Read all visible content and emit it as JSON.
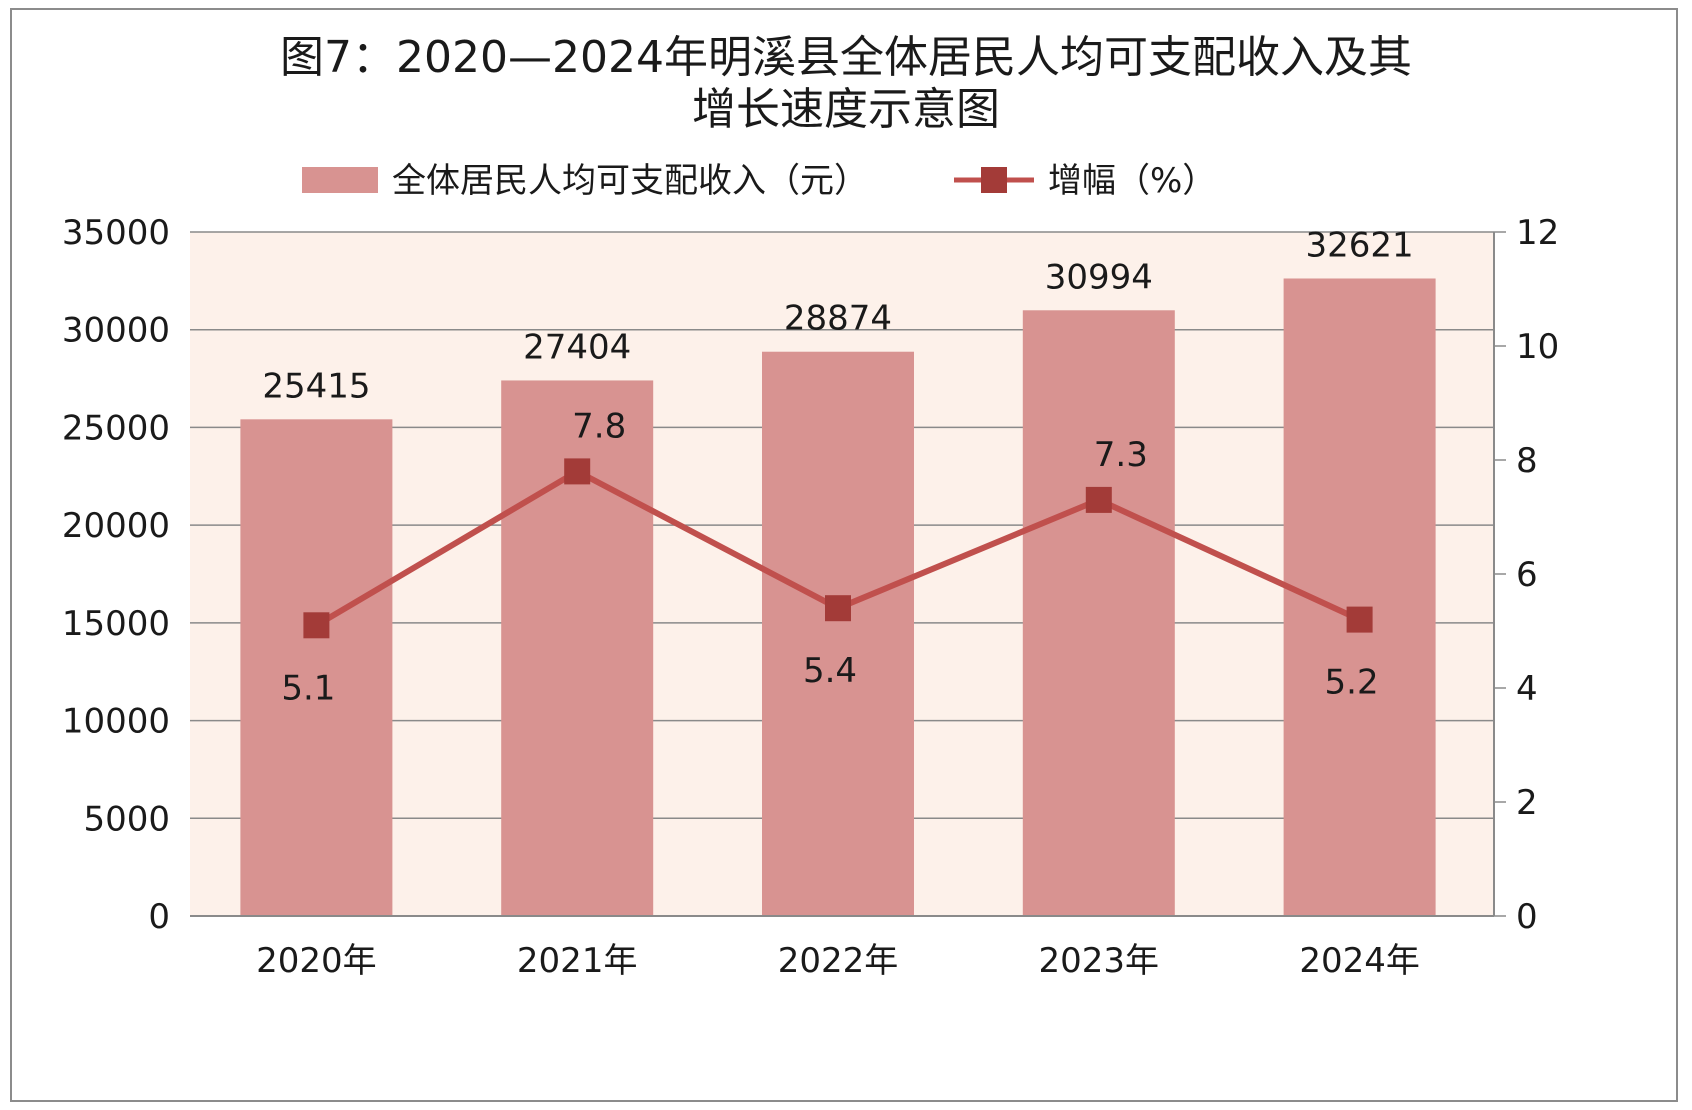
{
  "chart_data": {
    "type": "bar",
    "title_lines": [
      "图7：2020—2024年明溪县全体居民人均可支配收入及其",
      "增长速度示意图"
    ],
    "categories": [
      "2020年",
      "2021年",
      "2022年",
      "2023年",
      "2024年"
    ],
    "series": [
      {
        "name": "全体居民人均可支配收入（元）",
        "type": "bar",
        "axis": "left",
        "values": [
          25415,
          27404,
          28874,
          30994,
          32621
        ],
        "color": "#d89391"
      },
      {
        "name": "增幅（%）",
        "type": "line",
        "axis": "right",
        "values": [
          5.1,
          7.8,
          5.4,
          7.3,
          5.2
        ],
        "color": "#c0504d",
        "marker_color": "#a33b38"
      }
    ],
    "y_left": {
      "min": 0,
      "max": 35000,
      "ticks": [
        0,
        5000,
        10000,
        15000,
        20000,
        25000,
        30000,
        35000
      ]
    },
    "y_right": {
      "min": 0,
      "max": 12,
      "ticks": [
        0,
        2,
        4,
        6,
        8,
        10,
        12
      ]
    },
    "xlabel": "",
    "ylabel": "",
    "grid": true,
    "legend_position": "top",
    "plot_background": "#fdf1ea"
  }
}
